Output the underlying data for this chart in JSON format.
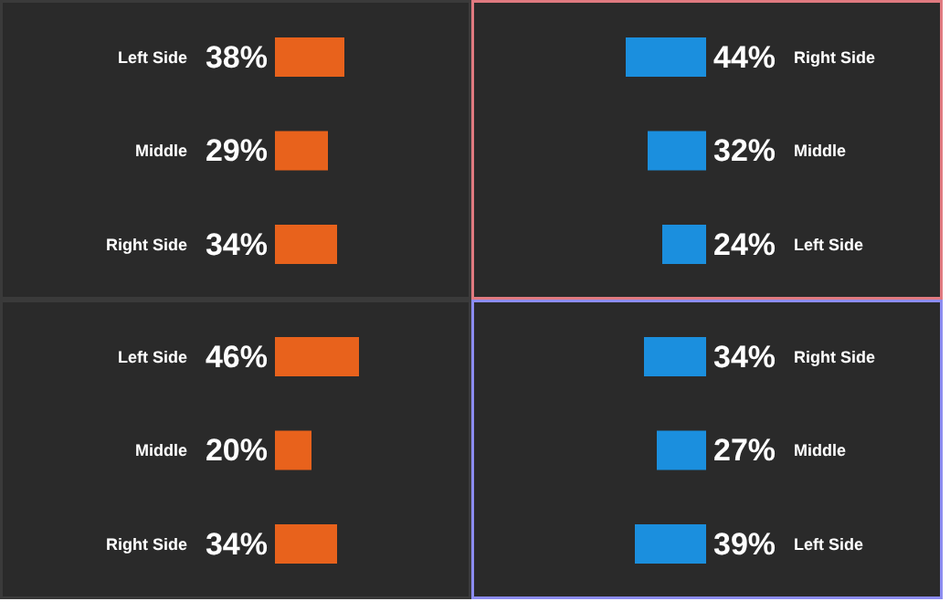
{
  "chart_data": [
    {
      "type": "bar",
      "orientation": "horizontal",
      "categories": [
        "Left Side",
        "Middle",
        "Right Side"
      ],
      "values": [
        38,
        29,
        34
      ],
      "value_labels": [
        "38%",
        "29%",
        "34%"
      ],
      "color": "#e8621c",
      "xlim": [
        -150,
        108
      ],
      "tick_labels": false
    },
    {
      "type": "bar",
      "orientation": "horizontal",
      "categories": [
        "Right Side",
        "Middle",
        "Left Side"
      ],
      "values": [
        44,
        32,
        24
      ],
      "value_labels": [
        "44%",
        "32%",
        "24%"
      ],
      "color": "#1b8fde",
      "xlim": [
        128,
        -130
      ],
      "tick_labels": false
    },
    {
      "type": "bar",
      "orientation": "horizontal",
      "categories": [
        "Left Side",
        "Middle",
        "Right Side"
      ],
      "values": [
        46,
        20,
        34
      ],
      "value_labels": [
        "46%",
        "20%",
        "34%"
      ],
      "color": "#e8621c",
      "xlim": [
        -150,
        108
      ],
      "tick_labels": false
    },
    {
      "type": "bar",
      "orientation": "horizontal",
      "categories": [
        "Right Side",
        "Middle",
        "Left Side"
      ],
      "values": [
        34,
        27,
        39
      ],
      "value_labels": [
        "34%",
        "27%",
        "39%"
      ],
      "color": "#1b8fde",
      "xlim": [
        128,
        -130
      ],
      "tick_labels": false
    }
  ]
}
